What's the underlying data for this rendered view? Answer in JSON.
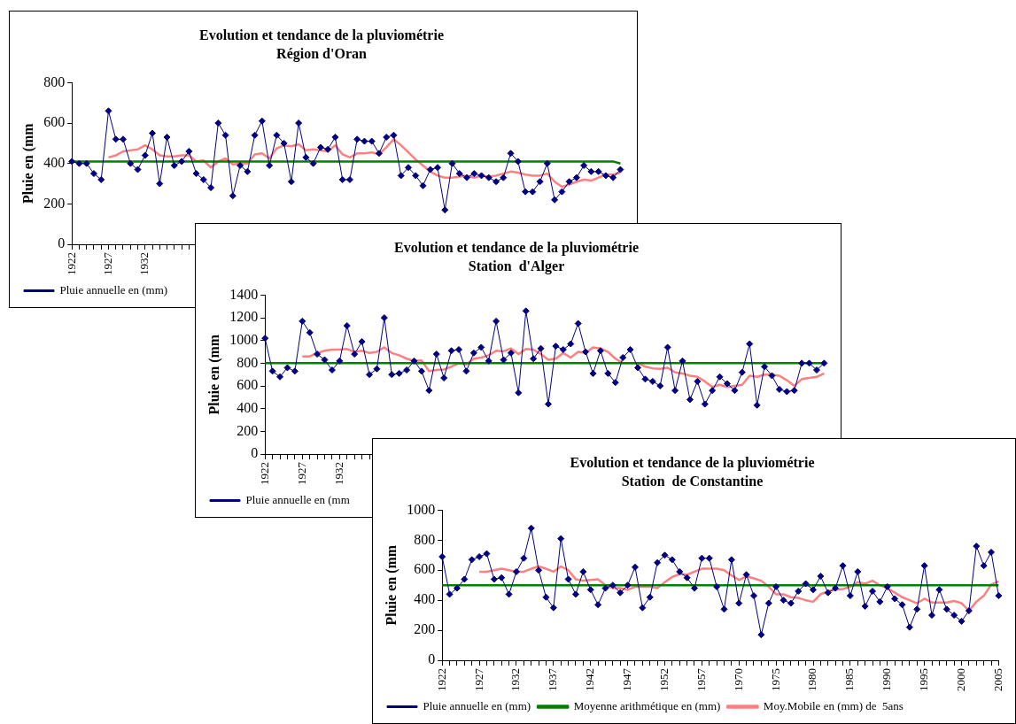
{
  "chart_data": [
    {
      "type": "line",
      "title": "Evolution et tendance de la pluviométrie",
      "subtitle": "Région d'Oran",
      "ylabel": "Pluie en (mm",
      "legend": "bottom",
      "grid": false,
      "ylim": [
        0,
        800
      ],
      "yticks": [
        0,
        200,
        400,
        600,
        800
      ],
      "categories": [
        "1922",
        null,
        null,
        null,
        null,
        "1927",
        null,
        null,
        null,
        null,
        "1932",
        null,
        null,
        null,
        null,
        null,
        null,
        null,
        null,
        null,
        null,
        null,
        null,
        null,
        null,
        null,
        null,
        null,
        null,
        null,
        null,
        null,
        null,
        null,
        null,
        null,
        null,
        null,
        null,
        null,
        null,
        null,
        null,
        null,
        null,
        null,
        null,
        null,
        null,
        null,
        null,
        null,
        null,
        null,
        null,
        null,
        null,
        null,
        null,
        null,
        null,
        null,
        null,
        null,
        null,
        null,
        null,
        null,
        null,
        null,
        null,
        null,
        null,
        null,
        null,
        null
      ],
      "series": [
        {
          "name": "Pluie annuelle en (mm)",
          "color": "#000080",
          "marker": "diamond",
          "values": [
            410,
            400,
            400,
            350,
            320,
            660,
            520,
            520,
            400,
            370,
            440,
            550,
            300,
            530,
            390,
            410,
            460,
            350,
            320,
            280,
            600,
            540,
            240,
            390,
            360,
            540,
            610,
            390,
            540,
            500,
            310,
            600,
            430,
            400,
            480,
            470,
            530,
            320,
            320,
            520,
            510,
            510,
            450,
            530,
            540,
            340,
            380,
            340,
            290,
            370,
            380,
            170,
            400,
            350,
            330,
            350,
            340,
            330,
            310,
            330,
            450,
            410,
            260,
            260,
            310,
            400,
            220,
            260,
            310,
            330,
            390,
            360,
            360,
            340,
            330,
            370
          ]
        },
        {
          "color": "#008000",
          "marker": "none",
          "values": [
            410,
            410,
            410,
            410,
            410,
            410,
            410,
            410,
            410,
            410,
            410,
            410,
            410,
            410,
            410,
            410,
            410,
            410,
            410,
            410,
            410,
            410,
            410,
            410,
            410,
            410,
            410,
            410,
            410,
            410,
            410,
            410,
            410,
            410,
            410,
            410,
            410,
            410,
            410,
            410,
            410,
            410,
            410,
            410,
            410,
            410,
            410,
            410,
            410,
            410,
            410,
            410,
            410,
            410,
            410,
            410,
            410,
            410,
            410,
            410,
            410,
            410,
            410,
            410,
            410,
            410,
            410,
            410,
            410,
            410,
            410,
            410,
            410,
            410,
            410,
            400
          ]
        },
        {
          "color": "#ff8080",
          "marker": "none",
          "values": [
            null,
            null,
            null,
            null,
            null,
            430,
            440,
            460,
            465,
            470,
            490,
            470,
            440,
            435,
            435,
            440,
            440,
            410,
            415,
            380,
            410,
            425,
            395,
            400,
            400,
            445,
            450,
            425,
            475,
            490,
            485,
            495,
            465,
            470,
            465,
            460,
            490,
            445,
            430,
            450,
            450,
            455,
            445,
            480,
            520,
            490,
            455,
            420,
            390,
            360,
            340,
            330,
            330,
            335,
            340,
            330,
            340,
            335,
            340,
            350,
            360,
            355,
            345,
            340,
            340,
            350,
            310,
            285,
            295,
            310,
            320,
            315,
            330,
            345,
            345,
            355
          ]
        }
      ]
    },
    {
      "type": "line",
      "title": "Evolution et tendance de la pluviométrie",
      "subtitle": "Station  d'Alger",
      "ylabel": "Pluie en (mm",
      "legend": "bottom",
      "grid": false,
      "ylim": [
        0,
        1400
      ],
      "yticks": [
        0,
        200,
        400,
        600,
        800,
        1000,
        1200,
        1400
      ],
      "categories": [
        "1922",
        null,
        null,
        null,
        null,
        "1927",
        null,
        null,
        null,
        null,
        "1932",
        null,
        null,
        null,
        null,
        null,
        null,
        null,
        null,
        null,
        null,
        null,
        null,
        null,
        null,
        null,
        null,
        null,
        null,
        null,
        null,
        null,
        null,
        null,
        null,
        null,
        null,
        null,
        null,
        null,
        null,
        null,
        null,
        null,
        null,
        null,
        null,
        null,
        null,
        null,
        null,
        null,
        null,
        null,
        null,
        null,
        null,
        null,
        null,
        null,
        null,
        null,
        null,
        null,
        null,
        null,
        null,
        null,
        null,
        null,
        null,
        null,
        null,
        null,
        null,
        null
      ],
      "series": [
        {
          "name": "Pluie annuelle en (mm",
          "color": "#000080",
          "marker": "diamond",
          "values": [
            1020,
            730,
            680,
            760,
            730,
            1170,
            1070,
            880,
            830,
            740,
            820,
            1130,
            880,
            990,
            700,
            750,
            1200,
            700,
            710,
            740,
            820,
            730,
            560,
            880,
            670,
            910,
            920,
            730,
            890,
            940,
            820,
            1170,
            830,
            890,
            540,
            1260,
            840,
            930,
            440,
            950,
            920,
            970,
            1150,
            900,
            710,
            910,
            710,
            630,
            850,
            920,
            760,
            660,
            640,
            600,
            940,
            560,
            820,
            480,
            640,
            440,
            560,
            680,
            620,
            560,
            720,
            970,
            430,
            770,
            690,
            570,
            550,
            560,
            800,
            800,
            740,
            800
          ]
        },
        {
          "color": "#008000",
          "marker": "none",
          "values": [
            800,
            800,
            800,
            800,
            800,
            800,
            800,
            800,
            800,
            800,
            800,
            800,
            800,
            800,
            800,
            800,
            800,
            800,
            800,
            800,
            800,
            800,
            800,
            800,
            800,
            800,
            800,
            800,
            800,
            800,
            800,
            800,
            800,
            800,
            800,
            800,
            800,
            800,
            800,
            800,
            800,
            800,
            800,
            800,
            800,
            800,
            800,
            800,
            800,
            800,
            800,
            800,
            800,
            800,
            800,
            800,
            800,
            800,
            800,
            800,
            800,
            800,
            800,
            800,
            800,
            800,
            800,
            800,
            800,
            800,
            800,
            800,
            800,
            800,
            800,
            800
          ]
        },
        {
          "color": "#ff8080",
          "marker": "none",
          "values": [
            null,
            null,
            null,
            null,
            null,
            860,
            860,
            890,
            910,
            920,
            920,
            925,
            900,
            910,
            890,
            900,
            940,
            890,
            870,
            840,
            820,
            825,
            730,
            740,
            745,
            770,
            800,
            790,
            840,
            850,
            870,
            910,
            905,
            930,
            880,
            925,
            920,
            880,
            830,
            840,
            890,
            850,
            900,
            890,
            940,
            930,
            900,
            840,
            800,
            800,
            800,
            770,
            755,
            750,
            760,
            720,
            710,
            690,
            680,
            640,
            590,
            610,
            590,
            600,
            610,
            690,
            680,
            700,
            700,
            690,
            650,
            600,
            660,
            670,
            680,
            710
          ]
        }
      ]
    },
    {
      "type": "line",
      "title": "Evolution et tendance de la pluviométrie",
      "subtitle": "Station  de Constantine",
      "ylabel": "Pluie en (mm",
      "legend": "bottom",
      "grid": false,
      "ylim": [
        0,
        1000
      ],
      "yticks": [
        0,
        200,
        400,
        600,
        800,
        1000
      ],
      "categories": [
        "1922",
        null,
        null,
        null,
        null,
        "1927",
        null,
        null,
        null,
        null,
        "1932",
        null,
        null,
        null,
        null,
        "1937",
        null,
        null,
        null,
        null,
        "1942",
        null,
        null,
        null,
        null,
        "1947",
        null,
        null,
        null,
        null,
        "1952",
        null,
        null,
        null,
        null,
        "1957",
        null,
        null,
        null,
        null,
        "1970",
        null,
        null,
        null,
        null,
        "1975",
        null,
        null,
        null,
        null,
        "1980",
        null,
        null,
        null,
        null,
        "1985",
        null,
        null,
        null,
        null,
        "1990",
        null,
        null,
        null,
        null,
        "1995",
        null,
        null,
        null,
        null,
        "2000",
        null,
        null,
        null,
        null,
        "2005"
      ],
      "series": [
        {
          "name": "Pluie annuelle en (mm)",
          "color": "#000080",
          "marker": "diamond",
          "values": [
            690,
            440,
            480,
            540,
            670,
            690,
            710,
            540,
            550,
            440,
            590,
            680,
            880,
            600,
            420,
            350,
            810,
            540,
            440,
            590,
            470,
            370,
            480,
            500,
            450,
            500,
            620,
            350,
            420,
            650,
            700,
            670,
            590,
            550,
            480,
            680,
            680,
            490,
            340,
            670,
            380,
            570,
            430,
            170,
            380,
            490,
            400,
            380,
            460,
            510,
            470,
            560,
            450,
            480,
            630,
            430,
            590,
            360,
            460,
            390,
            490,
            410,
            370,
            220,
            340,
            630,
            300,
            470,
            340,
            300,
            260,
            330,
            760,
            630,
            720,
            430
          ]
        },
        {
          "name": "Moyenne arithmétique en (mm)",
          "color": "#008000",
          "marker": "none",
          "values": [
            500,
            500,
            500,
            500,
            500,
            500,
            500,
            500,
            500,
            500,
            500,
            500,
            500,
            500,
            500,
            500,
            500,
            500,
            500,
            500,
            500,
            500,
            500,
            500,
            500,
            500,
            500,
            500,
            500,
            500,
            500,
            500,
            500,
            500,
            500,
            500,
            500,
            500,
            500,
            500,
            500,
            500,
            500,
            500,
            500,
            500,
            500,
            500,
            500,
            500,
            500,
            500,
            500,
            500,
            500,
            500,
            500,
            500,
            500,
            500,
            500,
            500,
            500,
            500,
            500,
            500,
            500,
            500,
            500,
            500,
            500,
            500,
            500,
            500,
            500,
            500
          ]
        },
        {
          "name": "Moy.Mobile en (mm) de  5ans",
          "color": "#ff8080",
          "marker": "none",
          "values": [
            null,
            null,
            null,
            null,
            null,
            590,
            590,
            600,
            610,
            600,
            590,
            590,
            610,
            625,
            610,
            590,
            625,
            600,
            540,
            530,
            535,
            540,
            500,
            480,
            480,
            470,
            490,
            490,
            490,
            480,
            520,
            555,
            575,
            570,
            590,
            610,
            610,
            610,
            600,
            565,
            535,
            560,
            545,
            530,
            490,
            440,
            440,
            420,
            415,
            400,
            390,
            440,
            460,
            470,
            475,
            490,
            520,
            510,
            530,
            500,
            480,
            450,
            420,
            400,
            380,
            410,
            385,
            385,
            385,
            395,
            380,
            330,
            390,
            430,
            505,
            525
          ]
        }
      ]
    }
  ]
}
